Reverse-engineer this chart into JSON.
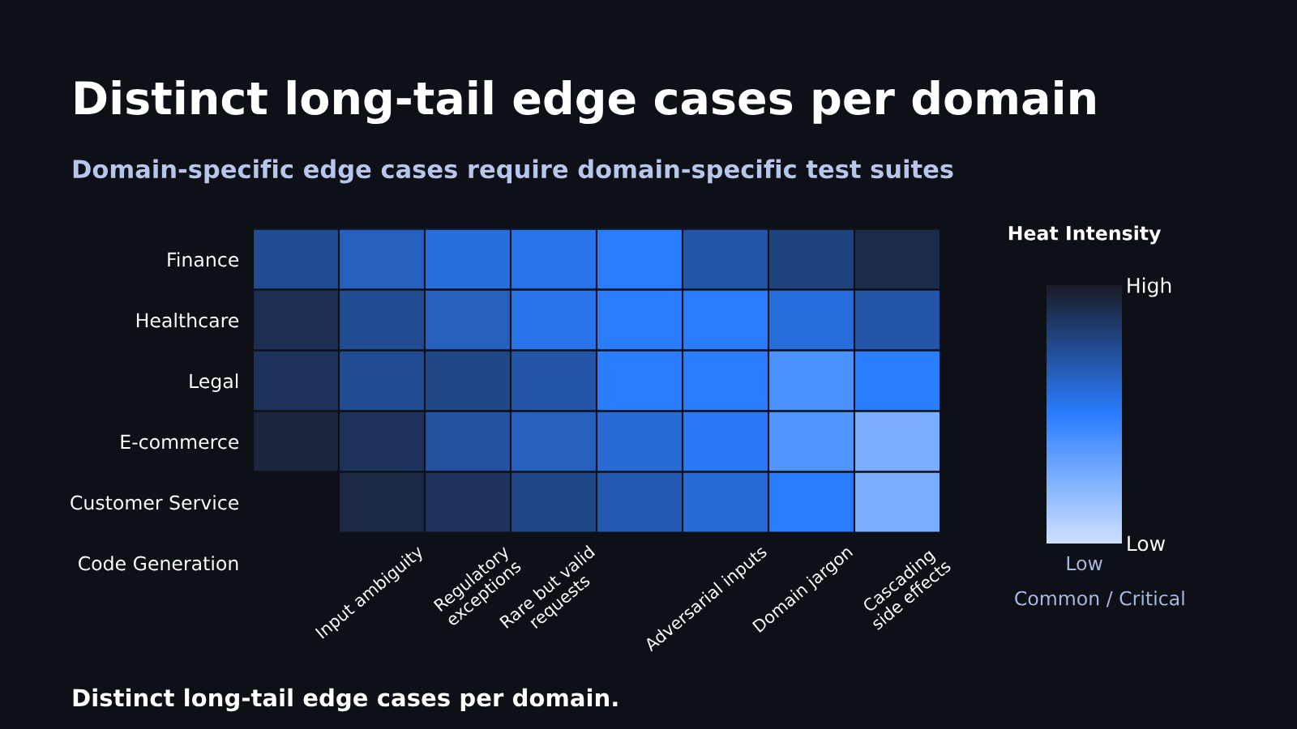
{
  "chart_data": {
    "type": "heatmap",
    "title": "Distinct long-tail edge cases per domain",
    "subtitle": "Domain-specific edge cases require domain-specific test suites",
    "categories": [
      null,
      "Input ambiguity",
      "Regulatory\nexceptions",
      "Rare but valid\nrequests",
      null,
      "Adversarial inputs",
      "Domain jargon",
      "Cascading\nside effects"
    ],
    "y_categories": [
      "Finance",
      "Healthcare",
      "Legal",
      "E-commerce",
      "Customer Service",
      "Code Generation"
    ],
    "cells": [
      [
        0.75,
        0.65,
        0.58,
        0.55,
        0.5,
        0.7,
        0.8,
        0.92
      ],
      [
        0.9,
        0.75,
        0.65,
        0.55,
        0.5,
        0.5,
        0.58,
        0.7
      ],
      [
        0.88,
        0.75,
        0.78,
        0.7,
        0.5,
        0.5,
        0.4,
        0.5
      ],
      [
        0.95,
        0.88,
        0.72,
        0.65,
        0.6,
        0.52,
        0.38,
        0.25
      ],
      [
        null,
        0.93,
        0.88,
        0.78,
        0.68,
        0.6,
        0.5,
        0.25
      ],
      [
        null,
        null,
        null,
        null,
        null,
        null,
        null,
        null
      ]
    ],
    "clabel": "Heat Intensity",
    "clim": [
      0,
      1
    ],
    "cticks": [
      {
        "value": 0,
        "label": "Low"
      },
      {
        "value": 1,
        "label": "High"
      }
    ],
    "annotations": [
      "Low",
      "Common / Critical",
      "Distinct long-tail edge cases per domain."
    ]
  }
}
